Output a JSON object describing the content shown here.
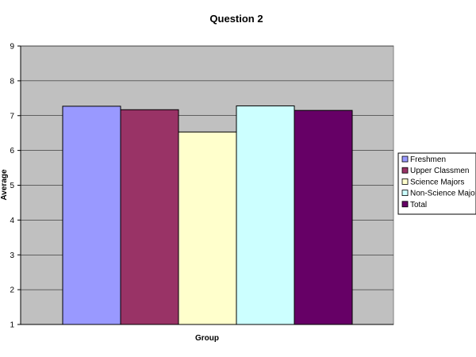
{
  "chart_data": {
    "type": "bar",
    "title": "Question 2",
    "xlabel": "Group",
    "ylabel": "Average",
    "ylim": [
      1,
      9
    ],
    "yticks": [
      1,
      2,
      3,
      4,
      5,
      6,
      7,
      8,
      9
    ],
    "grid": true,
    "legend_position": "right",
    "background_color": "#c0c0c0",
    "series": [
      {
        "name": "Freshmen",
        "value": 7.27,
        "color": "#9999ff"
      },
      {
        "name": "Upper Classmen",
        "value": 7.17,
        "color": "#993366"
      },
      {
        "name": "Science Majors",
        "value": 6.53,
        "color": "#ffffcc"
      },
      {
        "name": "Non-Science Majors",
        "value": 7.28,
        "color": "#ccffff"
      },
      {
        "name": "Total",
        "value": 7.15,
        "color": "#660066"
      }
    ]
  }
}
